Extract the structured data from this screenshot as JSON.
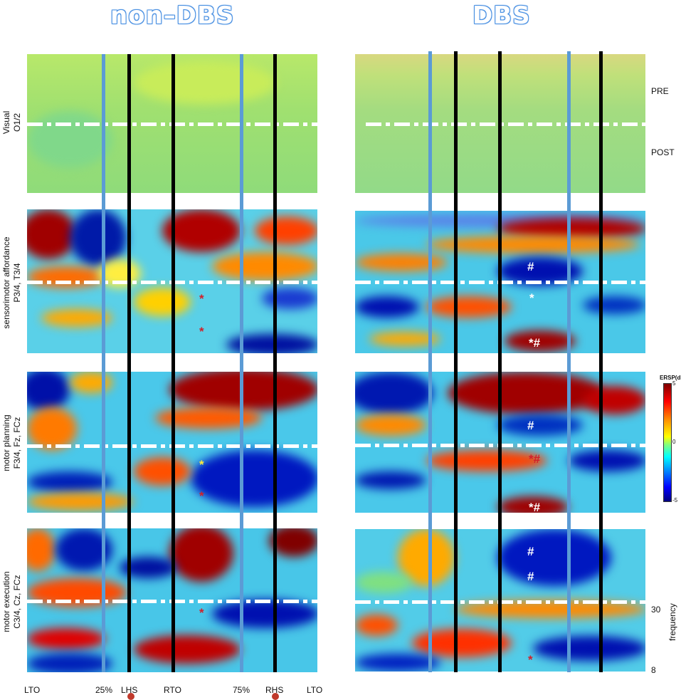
{
  "columns": {
    "left_title": "non–DBS",
    "right_title": "DBS"
  },
  "rows": [
    {
      "label_line1": "Visual",
      "label_line2": "O1/2"
    },
    {
      "label_line1": "sensorimotor affordance",
      "label_line2": "P3/4, T3/4"
    },
    {
      "label_line1": "motor planning",
      "label_line2": "F3/4, Fz, FCz"
    },
    {
      "label_line1": "motor execution",
      "label_line2": "C3/4, Cz, FCz"
    }
  ],
  "side_labels": {
    "pre": "PRE",
    "post": "POST",
    "freq_30": "30",
    "freq_8": "8",
    "frequency": "frequency"
  },
  "colorbar": {
    "title": "ERSP(dB)",
    "max": "5",
    "mid": "0",
    "min": "-5",
    "colors": [
      "#800000",
      "#ff0000",
      "#ffff00",
      "#00ffff",
      "#0000ff",
      "#000080"
    ]
  },
  "x_axis": {
    "ticks": [
      "LTO",
      "25%",
      "LHS",
      "RTO",
      "75%",
      "RHS",
      "LTO"
    ]
  },
  "markers": {
    "hash": "#",
    "star": "*",
    "star_hash": "*#"
  },
  "icons": {
    "heel_strike": "heel-strike-icon"
  }
}
